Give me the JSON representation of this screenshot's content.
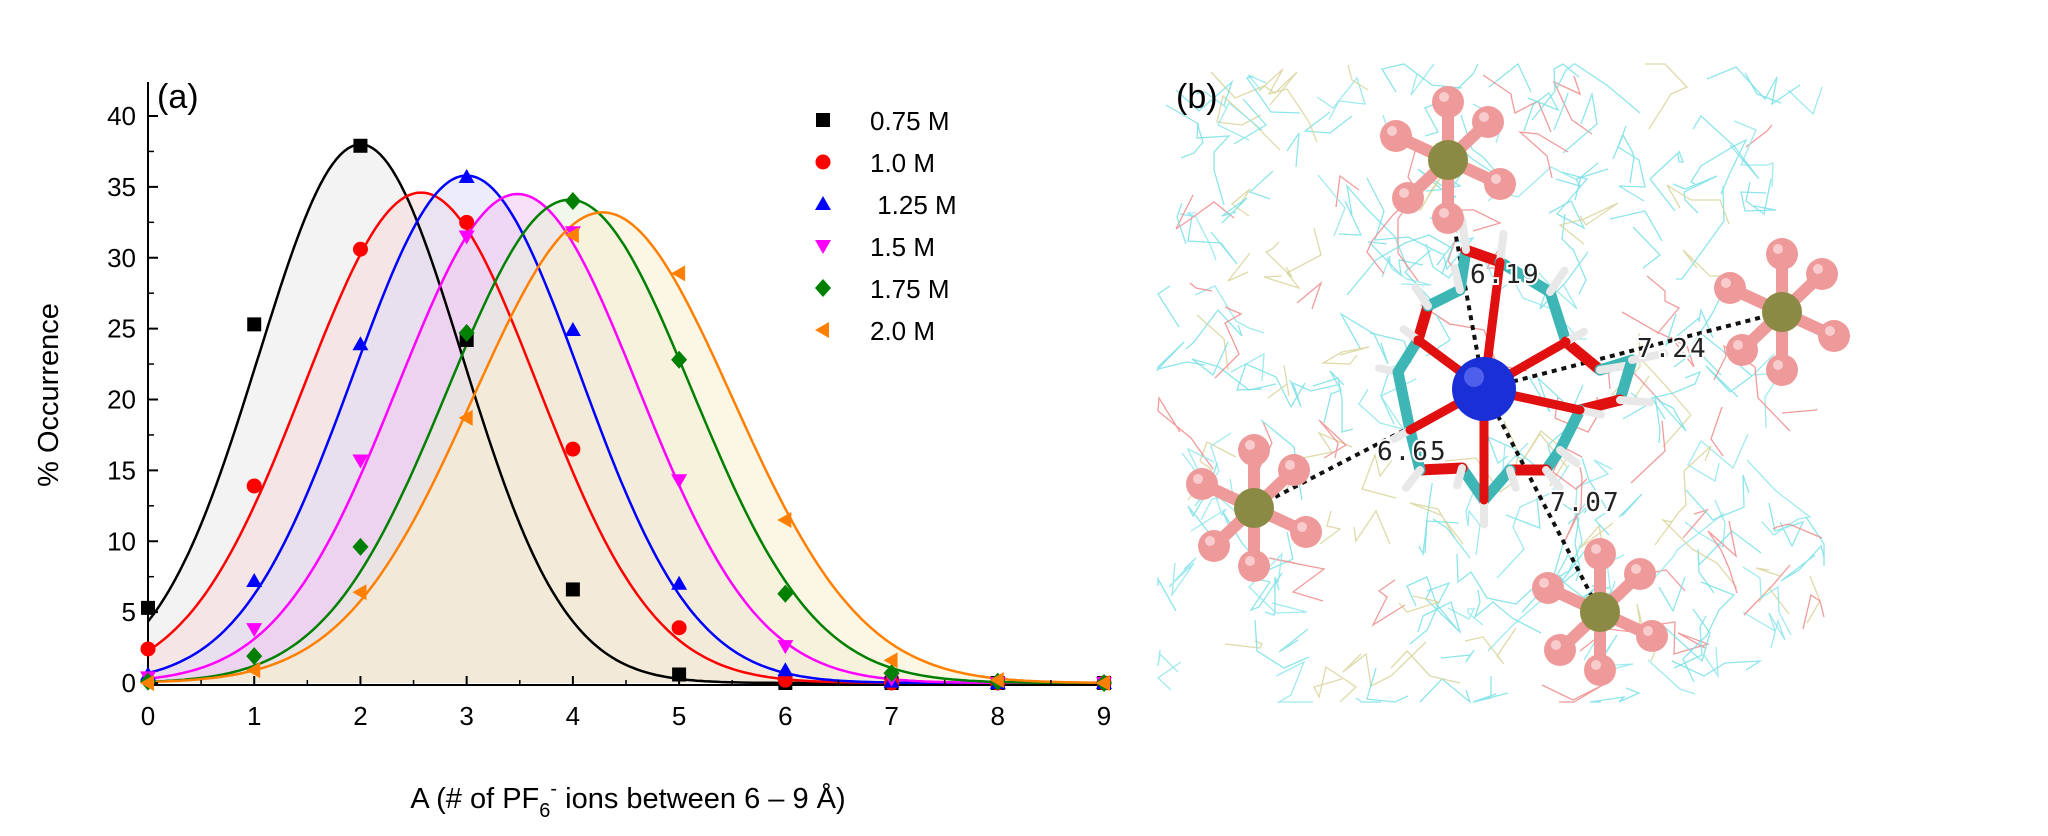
{
  "chart_data": {
    "type": "scatter",
    "panel_label": "(a)",
    "xlabel": {
      "before": "A (# of PF",
      "subscript": "6",
      "superscript": "-",
      "after": " ions between 6 – 9 Å)"
    },
    "ylabel": "% Occurrence",
    "xlim": [
      0,
      9
    ],
    "ylim": [
      0,
      40
    ],
    "xticks": [
      "0",
      "1",
      "2",
      "3",
      "4",
      "5",
      "6",
      "7",
      "8",
      "9"
    ],
    "yticks": [
      "0",
      "5",
      "10",
      "15",
      "20",
      "25",
      "30",
      "35",
      "40"
    ],
    "legend_position": "top-right",
    "fitted_gaussian_curves": true,
    "series": [
      {
        "name": "0.75 M",
        "color": "#000000",
        "marker": "square",
        "fill": "#e9e9e9",
        "x": [
          0,
          1,
          2,
          3,
          4,
          5,
          6,
          7,
          8,
          9
        ],
        "values": [
          5.3,
          25.3,
          37.9,
          24.2,
          6.6,
          0.6,
          0.0,
          0.0,
          0.0,
          0.0
        ],
        "fit": {
          "peak": 38.0,
          "center": 2.0,
          "sigma": 0.96
        }
      },
      {
        "name": "1.0 M",
        "color": "#ff0000",
        "marker": "circle",
        "fill": "#f7d8d8",
        "x": [
          0,
          1,
          2,
          3,
          4,
          5,
          6,
          7,
          8,
          9
        ],
        "values": [
          2.4,
          13.9,
          30.6,
          32.5,
          16.5,
          3.9,
          0.2,
          0.0,
          0.0,
          0.0
        ],
        "fit": {
          "peak": 34.6,
          "center": 2.57,
          "sigma": 1.1
        }
      },
      {
        "name": " 1.25 M",
        "color": "#0000ff",
        "marker": "triangle-up",
        "fill": "#dcdcf7",
        "x": [
          0,
          1,
          2,
          3,
          4,
          5,
          6,
          7,
          8,
          9
        ],
        "values": [
          0.6,
          7.2,
          23.9,
          35.7,
          24.9,
          7.0,
          0.9,
          0.1,
          0.0,
          0.0
        ],
        "fit": {
          "peak": 35.8,
          "center": 3.0,
          "sigma": 1.07
        }
      },
      {
        "name": "1.5 M",
        "color": "#ff00ff",
        "marker": "triangle-down",
        "fill": "#f3c8f3",
        "x": [
          0,
          1,
          2,
          3,
          4,
          5,
          6,
          7,
          8,
          9
        ],
        "values": [
          0.4,
          3.8,
          15.7,
          31.5,
          31.8,
          14.3,
          2.6,
          0.3,
          0.0,
          0.0
        ],
        "fit": {
          "peak": 34.5,
          "center": 3.48,
          "sigma": 1.13
        }
      },
      {
        "name": "1.75 M",
        "color": "#008000",
        "marker": "diamond",
        "fill": "#e6f0d8",
        "x": [
          0,
          1,
          2,
          3,
          4,
          5,
          6,
          7,
          8,
          9
        ],
        "values": [
          0.1,
          1.9,
          9.6,
          24.7,
          34.0,
          22.8,
          6.3,
          0.7,
          0.1,
          0.0
        ],
        "fit": {
          "peak": 34.1,
          "center": 3.97,
          "sigma": 1.15
        }
      },
      {
        "name": "2.0 M",
        "color": "#ff8000",
        "marker": "triangle-left",
        "fill": "#f9efcf",
        "x": [
          0,
          1,
          2,
          3,
          4,
          5,
          6,
          7,
          8,
          9
        ],
        "values": [
          0.0,
          0.9,
          6.4,
          18.7,
          31.6,
          28.9,
          11.5,
          1.6,
          0.2,
          0.0
        ],
        "fit": {
          "peak": 33.2,
          "center": 4.28,
          "sigma": 1.22
        }
      }
    ]
  },
  "structure_panel": {
    "panel_label": "(b)",
    "central_ion_color": "#1a2fd6",
    "oxygen_color": "#e01010",
    "carbon_color": "#3fb6b6",
    "hydrogen_color": "#e8e8e8",
    "phosphorus_color": "#8a8a44",
    "fluorine_color": "#ef9a9a",
    "distances": [
      {
        "label": "6.19"
      },
      {
        "label": "7.24"
      },
      {
        "label": "6.65"
      },
      {
        "label": "7.07"
      }
    ]
  }
}
